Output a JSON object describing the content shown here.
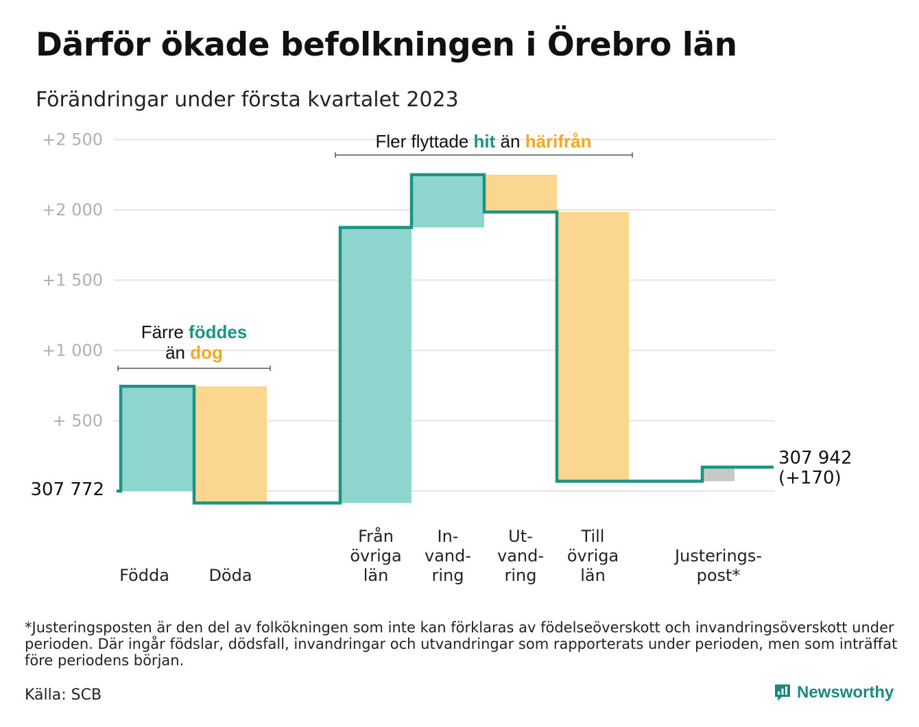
{
  "title": "Därför ökade befolkningen i Örebro län",
  "subtitle": "Förändringar under första kvartalet 2023",
  "colors": {
    "teal_line": "#1a9583",
    "teal_fill": "#8dd5cd",
    "orange_fill": "#fbd68f",
    "orange_text": "#f5a623",
    "grey_fill": "#c8c8c8",
    "grid": "#e4e4e4"
  },
  "annotations": {
    "births": {
      "line1_a": "Färre ",
      "line1_b": "föddes",
      "line2_a": "än ",
      "line2_b": "dog"
    },
    "moves": {
      "a": "Fler flyttade ",
      "b": "hit",
      "c": " än ",
      "d": "härifrån"
    }
  },
  "chart_data": {
    "type": "waterfall",
    "start_label": "307 772",
    "end_label_value": "307 942",
    "end_label_change": "(+170)",
    "y_ticks": [
      {
        "value": 500,
        "label": "+ 500"
      },
      {
        "value": 1000,
        "label": "+1 000"
      },
      {
        "value": 1500,
        "label": "+1 500"
      },
      {
        "value": 2000,
        "label": "+2 000"
      },
      {
        "value": 2500,
        "label": "+2 500"
      }
    ],
    "ylim": [
      -150,
      2600
    ],
    "grid": true,
    "steps": [
      {
        "category": [
          "Födda"
        ],
        "change": 745,
        "color": "teal"
      },
      {
        "category": [
          "Döda"
        ],
        "change": -830,
        "color": "orange"
      },
      {
        "category": [
          "Från",
          "övriga",
          "län"
        ],
        "change": 1960,
        "color": "teal"
      },
      {
        "category": [
          "In-",
          "vand-",
          "ring"
        ],
        "change": 375,
        "color": "teal"
      },
      {
        "category": [
          "Ut-",
          "vand-",
          "ring"
        ],
        "change": -265,
        "color": "orange"
      },
      {
        "category": [
          "Till",
          "övriga",
          "län"
        ],
        "change": -1915,
        "color": "orange"
      },
      {
        "category": [
          "Justerings-",
          "post*"
        ],
        "change": 100,
        "color": "grey"
      }
    ]
  },
  "footnote": "*Justeringsposten är den del av folkökningen som inte kan förklaras av födelseöverskott och invandringsöverskott under perioden. Där ingår födslar, dödsfall, invandringar och utvandringar som rapporterats under perioden, men som inträffat före periodens början.",
  "source": "Källa: SCB",
  "brand": "Newsworthy"
}
